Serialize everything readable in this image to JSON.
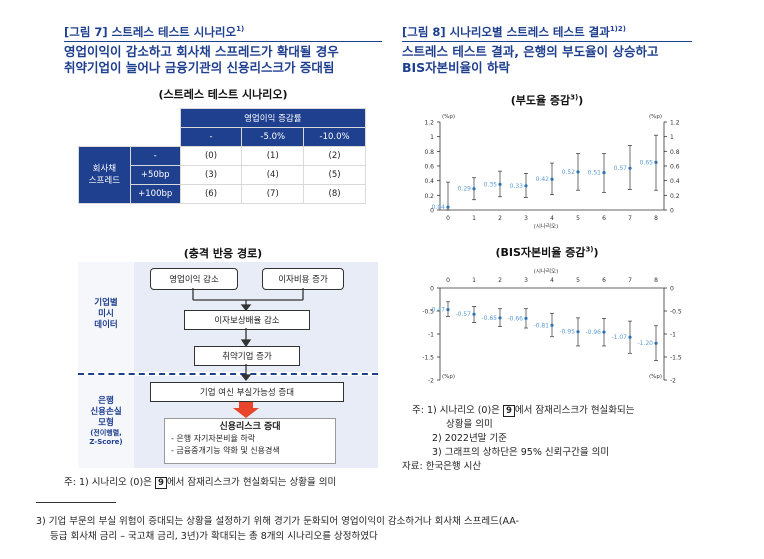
{
  "left_figure": {
    "tag": "[그림 7] 스트레스 테스트 시나리오",
    "tag_sup": "1)",
    "headline_1": "영업이익이 감소하고 회사채 스프레드가 확대될 경우",
    "headline_2": "취약기업이 늘어나 금융기관의 신용리스크가 증대됨",
    "scenario_title": "(스트레스 테스트 시나리오)",
    "table": {
      "col_group": "영업이익 증감률",
      "col_headers": [
        "-",
        "-5.0%",
        "-10.0%"
      ],
      "row_group_1": "회사채",
      "row_group_2": "스프레드",
      "rows": [
        {
          "label": "-",
          "cells": [
            "(0)",
            "(1)",
            "(2)"
          ]
        },
        {
          "label": "+50bp",
          "cells": [
            "(3)",
            "(4)",
            "(5)"
          ]
        },
        {
          "label": "+100bp",
          "cells": [
            "(6)",
            "(7)",
            "(8)"
          ]
        }
      ]
    },
    "shock_title": "(충격 반응 경로)",
    "flow": {
      "side_top": [
        "기업별",
        "미시",
        "데이터"
      ],
      "side_bottom": [
        "은행",
        "신용손실",
        "모형"
      ],
      "side_bottom_sub": [
        "(전이행렬,",
        "Z-Score)"
      ],
      "box_op_income": "영업이익 감소",
      "box_interest": "이자비용 증가",
      "box_icr": "이자보상배율 감소",
      "box_weak": "취약기업 증가",
      "box_loan": "기업 여신 부실가능성 증대",
      "credit_title": "신용리스크 증대",
      "credit_items": [
        "- 은행 자기자본비율 하락",
        "- 금융중개기능 약화 및 신용경색"
      ]
    },
    "note_1": "주: 1) 시나리오 (0)은 ",
    "note_1_box": "9",
    "note_1_rest": "에서 잠재리스크가 현실화되는 상황을 의미"
  },
  "right_figure": {
    "tag": "[그림 8] 시나리오별 스트레스 테스트 결과",
    "tag_sup": "1)2)",
    "headline_1": "스트레스 테스트 결과, 은행의 부도율이 상승하고",
    "headline_2": "BIS자본비율이 하락",
    "chart1_title": "(부도율 증감",
    "chart1_title_sup": "3)",
    "chart2_title": "(BIS자본비율 증감",
    "chart2_title_sup": "3)",
    "notes": [
      "주: 1) 시나리오 (0)은 ",
      "9",
      "에서 잠재리스크가 현실화되는",
      "상황을 의미",
      "2) 2022년말 기준",
      "3) 그래프의 상하단은 95% 신뢰구간을 의미",
      "자료: 한국은행 시산"
    ]
  },
  "footnote_1": "3) 기업 부문의 부실 위험이 증대되는 상황을 설정하기 위해 경기가 둔화되어 영업이익이 감소하거나 회사채 스프레드(AA-",
  "footnote_2": "등급 회사채 금리 – 국고채 금리, 3년)가 확대되는 총 8개의 시나리오를 상정하였다",
  "colors": {
    "navy": "#1f3f8f",
    "accent": "#2e74b5",
    "label_blue": "#5b9bd5",
    "arrow_red": "#e8452a"
  },
  "chart_data": [
    {
      "type": "scatter",
      "title": "(부도율 증감3))",
      "unit_left": "(%p)",
      "unit_right": "(%p)",
      "xlabel": "(시나리오)",
      "x": [
        0,
        1,
        2,
        3,
        4,
        5,
        6,
        7,
        8
      ],
      "values": [
        0.04,
        0.29,
        0.35,
        0.33,
        0.42,
        0.52,
        0.51,
        0.57,
        0.65
      ],
      "labels": [
        "0.04",
        "0.29",
        "0.35",
        "0.33",
        "0.42",
        "0.52",
        "0.51",
        "0.57",
        "0.65"
      ],
      "ci_low": [
        0.0,
        0.14,
        0.18,
        0.17,
        0.21,
        0.27,
        0.24,
        0.28,
        0.27
      ],
      "ci_high": [
        0.38,
        0.44,
        0.53,
        0.5,
        0.64,
        0.77,
        0.77,
        0.88,
        1.02
      ],
      "ylim": [
        0,
        1.2
      ],
      "yticks": [
        0,
        0.2,
        0.4,
        0.6,
        0.8,
        1,
        1.2
      ],
      "ytick_labels": [
        "0",
        "0.2",
        "0.4",
        "0.6",
        "0.8",
        "1",
        "1.2"
      ],
      "error_bars": "95% confidence interval"
    },
    {
      "type": "scatter",
      "title": "(BIS자본비율 증감3))",
      "unit_left": "(%p)",
      "unit_right": "(%p)",
      "xlabel": "(시나리오)",
      "x": [
        0,
        1,
        2,
        3,
        4,
        5,
        6,
        7,
        8
      ],
      "values": [
        -0.47,
        -0.57,
        -0.65,
        -0.66,
        -0.81,
        -0.95,
        -0.96,
        -1.07,
        -1.2
      ],
      "labels": [
        "-0.47",
        "-0.57",
        "-0.65",
        "-0.66",
        "-0.81",
        "-0.95",
        "-0.96",
        "-1.07",
        "-1.20"
      ],
      "ci_low": [
        -0.62,
        -0.75,
        -0.84,
        -0.87,
        -1.06,
        -1.26,
        -1.26,
        -1.42,
        -1.58
      ],
      "ci_high": [
        -0.3,
        -0.4,
        -0.45,
        -0.45,
        -0.55,
        -0.65,
        -0.66,
        -0.72,
        -0.82
      ],
      "ylim": [
        -2,
        0
      ],
      "yticks": [
        0,
        -0.5,
        -1,
        -1.5,
        -2
      ],
      "ytick_labels": [
        "0",
        "-0.5",
        "-1",
        "-1.5",
        "-2"
      ],
      "x_axis_position": "top",
      "error_bars": "95% confidence interval"
    }
  ]
}
